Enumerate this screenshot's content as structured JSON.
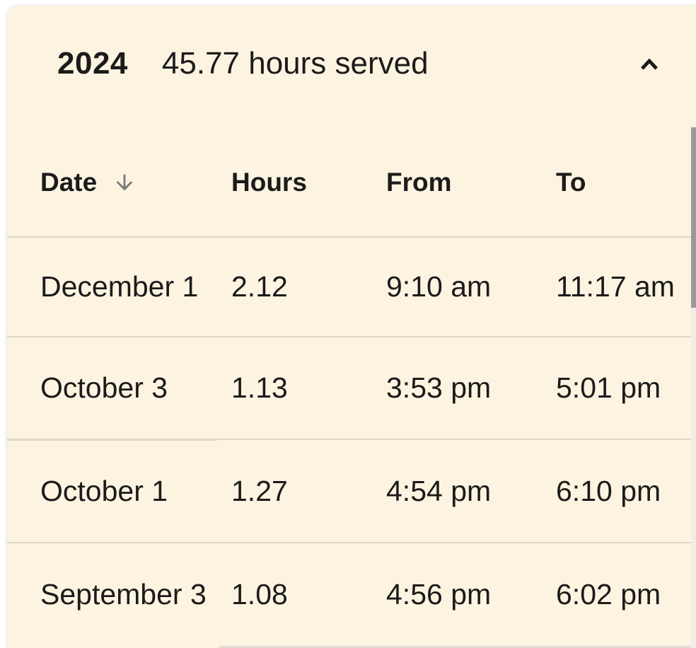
{
  "panel": {
    "year": "2024",
    "summary": "45.77 hours served",
    "collapse_icon": "chevron-up-icon",
    "state": "expanded"
  },
  "table": {
    "columns": [
      {
        "label": "Date",
        "sort": "descending",
        "sort_icon": "arrow-down-icon"
      },
      {
        "label": "Hours"
      },
      {
        "label": "From"
      },
      {
        "label": "To"
      }
    ],
    "rows": [
      {
        "date": "December 1",
        "hours": "2.12",
        "from": "9:10 am",
        "to": "11:17 am"
      },
      {
        "date": "October 3",
        "hours": "1.13",
        "from": "3:53 pm",
        "to": "5:01 pm"
      },
      {
        "date": "October 1",
        "hours": "1.27",
        "from": "4:54 pm",
        "to": "6:10 pm"
      },
      {
        "date": "September 3",
        "hours": "1.08",
        "from": "4:56 pm",
        "to": "6:02 pm"
      }
    ]
  },
  "colors": {
    "page-bg": "#ffffff",
    "card-bg": "#fcf4e1",
    "text": "#1c1b1b",
    "divider": "#dfd8c7",
    "divider-light": "#e2ded2",
    "sort-icon": "#7a7a78",
    "chevron": "#1c1b1b",
    "scroll-thumb": "#9a9a98",
    "scroll-track": "#efede6"
  }
}
